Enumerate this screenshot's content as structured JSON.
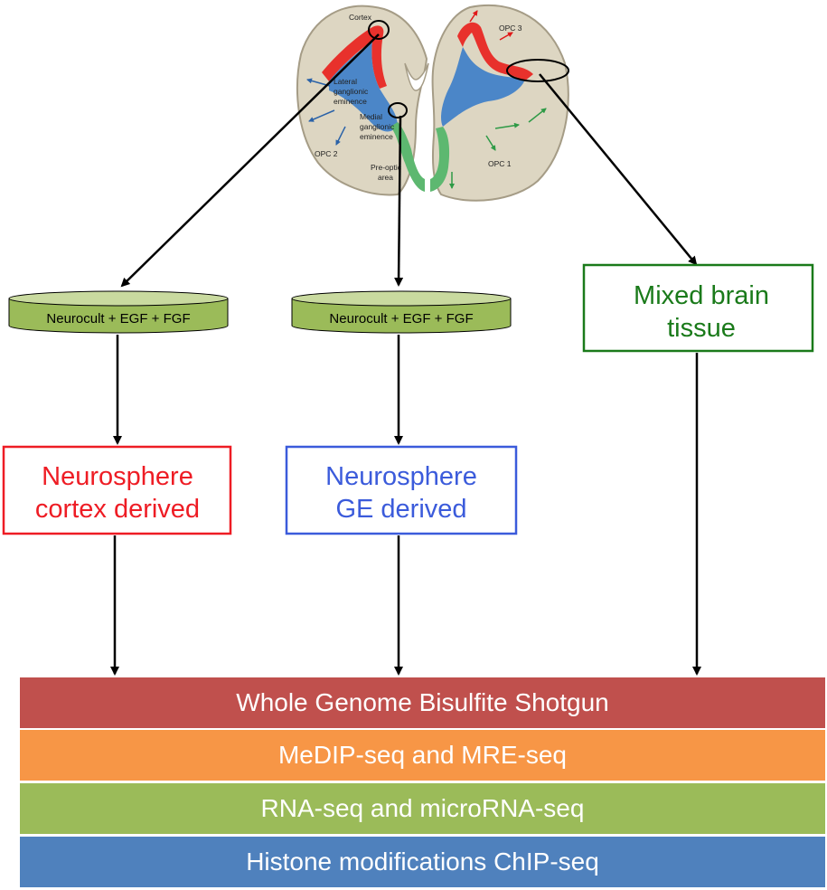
{
  "brain_labels": {
    "cortex": "Cortex",
    "lateral": [
      "Lateral",
      "ganglionic",
      "eminence"
    ],
    "medial": [
      "Medial",
      "ganglionic",
      "eminence"
    ],
    "preoptic": [
      "Pre-optic",
      "area"
    ],
    "opc1": "OPC 1",
    "opc2": "OPC 2",
    "opc3": "OPC 3"
  },
  "culture_dishes": [
    {
      "label": "Neurocult + EGF + FGF"
    },
    {
      "label": "Neurocult + EGF + FGF"
    }
  ],
  "sample_boxes": [
    {
      "lines": [
        "Neurosphere",
        "cortex derived"
      ],
      "color": "#ee1c24"
    },
    {
      "lines": [
        "Neurosphere",
        "GE derived"
      ],
      "color": "#3b5bdb"
    },
    {
      "lines": [
        "Mixed brain",
        "tissue"
      ],
      "color": "#1a7a1a"
    }
  ],
  "assays": [
    {
      "label": "Whole Genome Bisulfite Shotgun",
      "color": "#c0504d"
    },
    {
      "label": "MeDIP-seq and MRE-seq",
      "color": "#f79646"
    },
    {
      "label": "RNA-seq and microRNA-seq",
      "color": "#9bbb59"
    },
    {
      "label": "Histone modifications ChIP-seq",
      "color": "#4f81bd"
    }
  ],
  "colors": {
    "brain_fill": "#ddd6c2",
    "cortex_zone": "#e8312c",
    "ge_zone": "#4b86c8",
    "preoptic_zone": "#5db870",
    "dish": "#9bbb59"
  }
}
